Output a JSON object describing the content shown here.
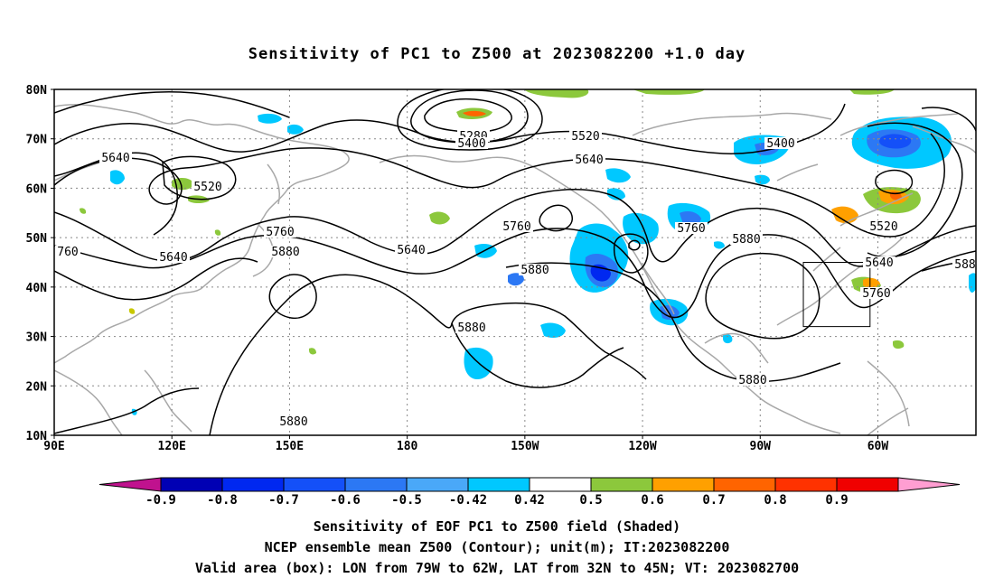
{
  "title": "Sensitivity of PC1 to Z500 at 2023082200 +1.0 day",
  "captions": [
    "Sensitivity of EOF PC1 to Z500 field (Shaded)",
    "NCEP ensemble mean Z500 (Contour); unit(m); IT:2023082200",
    "Valid area (box): LON from 79W to 62W, LAT from 32N to 45N; VT: 2023082700"
  ],
  "axes": {
    "lat_labels": [
      "80N",
      "70N",
      "60N",
      "50N",
      "40N",
      "30N",
      "20N",
      "10N"
    ],
    "lon_labels": [
      "90E",
      "120E",
      "150E",
      "180",
      "150W",
      "120W",
      "90W",
      "60W"
    ],
    "lat_range": [
      10,
      80
    ],
    "lon_range_east": [
      90,
      325
    ],
    "grid": "dotted"
  },
  "colorbar": {
    "labels": [
      "-0.9",
      "-0.8",
      "-0.7",
      "-0.6",
      "-0.5",
      "-0.42",
      "0.42",
      "0.5",
      "0.6",
      "0.7",
      "0.8",
      "0.9"
    ],
    "colors": [
      "#c0128e",
      "#0000b4",
      "#0028f0",
      "#1450f8",
      "#2c78f4",
      "#4aa8f8",
      "#00c8ff",
      "#ffffff",
      "#8cc83c",
      "#ffa000",
      "#ff6400",
      "#ff3200",
      "#f00000",
      "#ff9ed2"
    ]
  },
  "contour_labels": [
    "5280",
    "5400",
    "5520",
    "5640",
    "5760",
    "5880"
  ],
  "valid_box": {
    "lon_west": -79,
    "lon_east": -62,
    "lat_south": 32,
    "lat_north": 45
  },
  "line_colors": {
    "contour": "#000000",
    "coast": "#a8a8a8",
    "grid": "#888888"
  }
}
